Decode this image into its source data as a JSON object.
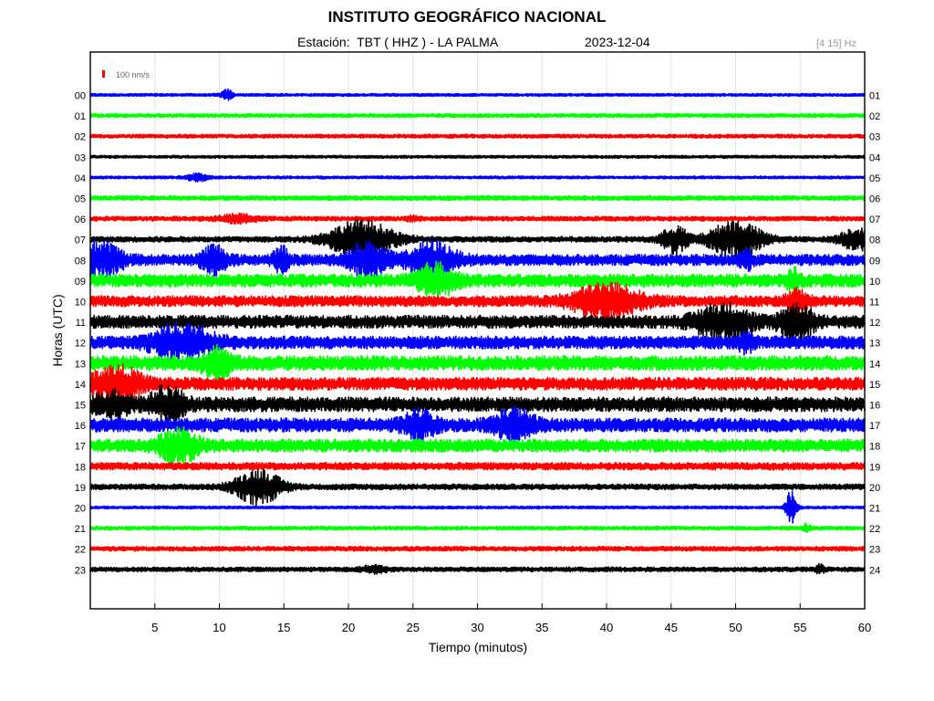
{
  "chart_data": {
    "type": "line",
    "title": "INSTITUTO GEOGRÁFICO NACIONAL",
    "subtitle": "Estación:  TBT ( HHZ ) - LA PALMA",
    "date": "2023-12-04",
    "frequency_band": "[4 15] Hz",
    "scale_label": "100 nm/s",
    "xlabel": "Tiempo (minutos)",
    "ylabel": "Horas (UTC)",
    "xlim": [
      0,
      60
    ],
    "x_ticks": [
      "5",
      "10",
      "15",
      "20",
      "25",
      "30",
      "35",
      "40",
      "45",
      "50",
      "55",
      "60"
    ],
    "grid": true,
    "colors": [
      "#0000ff",
      "#00ff00",
      "#ff0000",
      "#000000"
    ],
    "series": [
      {
        "hour_label": "00",
        "right_label": "01",
        "noise": 1.5,
        "events": [
          {
            "t": 10.5,
            "amp": 4,
            "dur": 0.4
          },
          {
            "t": 10.8,
            "amp": 2.5,
            "dur": 0.3
          }
        ]
      },
      {
        "hour_label": "01",
        "right_label": "02",
        "noise": 2.0,
        "events": []
      },
      {
        "hour_label": "02",
        "right_label": "03",
        "noise": 2.0,
        "events": []
      },
      {
        "hour_label": "03",
        "right_label": "04",
        "noise": 1.5,
        "events": []
      },
      {
        "hour_label": "04",
        "right_label": "05",
        "noise": 1.5,
        "events": [
          {
            "t": 8.3,
            "amp": 4,
            "dur": 0.8
          }
        ]
      },
      {
        "hour_label": "05",
        "right_label": "06",
        "noise": 2.5,
        "events": []
      },
      {
        "hour_label": "06",
        "right_label": "07",
        "noise": 2.5,
        "events": [
          {
            "t": 11.5,
            "amp": 4,
            "dur": 1.5
          },
          {
            "t": 25,
            "amp": 2,
            "dur": 0.5
          }
        ]
      },
      {
        "hour_label": "07",
        "right_label": "08",
        "noise": 3.0,
        "events": [
          {
            "t": 21,
            "amp": 20,
            "dur": 2.5
          },
          {
            "t": 45.3,
            "amp": 14,
            "dur": 1.0
          },
          {
            "t": 50,
            "amp": 20,
            "dur": 2.0
          },
          {
            "t": 59.3,
            "amp": 12,
            "dur": 1.2
          }
        ]
      },
      {
        "hour_label": "08",
        "right_label": "09",
        "noise": 6.0,
        "events": [
          {
            "t": 0.8,
            "amp": 18,
            "dur": 1.6
          },
          {
            "t": 9.6,
            "amp": 14,
            "dur": 1.0
          },
          {
            "t": 14.8,
            "amp": 12,
            "dur": 0.6
          },
          {
            "t": 21.5,
            "amp": 17,
            "dur": 1.5
          },
          {
            "t": 26.5,
            "amp": 17,
            "dur": 1.8
          },
          {
            "t": 50.8,
            "amp": 10,
            "dur": 0.5
          }
        ]
      },
      {
        "hour_label": "09",
        "right_label": "10",
        "noise": 7.0,
        "events": [
          {
            "t": 26.8,
            "amp": 17,
            "dur": 1.4
          },
          {
            "t": 54.5,
            "amp": 10,
            "dur": 0.5
          }
        ]
      },
      {
        "hour_label": "10",
        "right_label": "11",
        "noise": 6.0,
        "events": [
          {
            "t": 40,
            "amp": 17,
            "dur": 2.5
          },
          {
            "t": 54.7,
            "amp": 10,
            "dur": 0.8
          }
        ]
      },
      {
        "hour_label": "11",
        "right_label": "12",
        "noise": 7.0,
        "events": [
          {
            "t": 49,
            "amp": 18,
            "dur": 2.0
          },
          {
            "t": 54.7,
            "amp": 20,
            "dur": 1.2
          }
        ]
      },
      {
        "hour_label": "12",
        "right_label": "13",
        "noise": 7.0,
        "events": [
          {
            "t": 7.2,
            "amp": 20,
            "dur": 2.2
          },
          {
            "t": 50.8,
            "amp": 8,
            "dur": 0.6
          }
        ]
      },
      {
        "hour_label": "13",
        "right_label": "14",
        "noise": 8.0,
        "events": [
          {
            "t": 9.8,
            "amp": 15,
            "dur": 1.0
          }
        ]
      },
      {
        "hour_label": "14",
        "right_label": "15",
        "noise": 7.0,
        "events": [
          {
            "t": 2,
            "amp": 18,
            "dur": 1.8
          }
        ]
      },
      {
        "hour_label": "15",
        "right_label": "16",
        "noise": 8.0,
        "events": [
          {
            "t": 1.8,
            "amp": 10,
            "dur": 1.5
          },
          {
            "t": 6,
            "amp": 17,
            "dur": 1.2
          }
        ]
      },
      {
        "hour_label": "16",
        "right_label": "17",
        "noise": 7.5,
        "events": [
          {
            "t": 25.5,
            "amp": 12,
            "dur": 1.2
          },
          {
            "t": 32.8,
            "amp": 14,
            "dur": 1.5
          }
        ]
      },
      {
        "hour_label": "17",
        "right_label": "18",
        "noise": 7.0,
        "events": [
          {
            "t": 6.8,
            "amp": 18,
            "dur": 1.4
          }
        ]
      },
      {
        "hour_label": "18",
        "right_label": "19",
        "noise": 4.0,
        "events": []
      },
      {
        "hour_label": "19",
        "right_label": "20",
        "noise": 3.0,
        "events": [
          {
            "t": 13,
            "amp": 18,
            "dur": 1.8
          }
        ]
      },
      {
        "hour_label": "20",
        "right_label": "21",
        "noise": 1.5,
        "events": [
          {
            "t": 54.3,
            "amp": 18,
            "dur": 0.4
          }
        ]
      },
      {
        "hour_label": "21",
        "right_label": "22",
        "noise": 2.0,
        "events": [
          {
            "t": 55.5,
            "amp": 4,
            "dur": 0.3
          }
        ]
      },
      {
        "hour_label": "22",
        "right_label": "23",
        "noise": 2.5,
        "events": []
      },
      {
        "hour_label": "23",
        "right_label": "24",
        "noise": 2.5,
        "events": [
          {
            "t": 22,
            "amp": 3,
            "dur": 1.0
          },
          {
            "t": 56.5,
            "amp": 4,
            "dur": 0.4
          }
        ]
      }
    ]
  }
}
